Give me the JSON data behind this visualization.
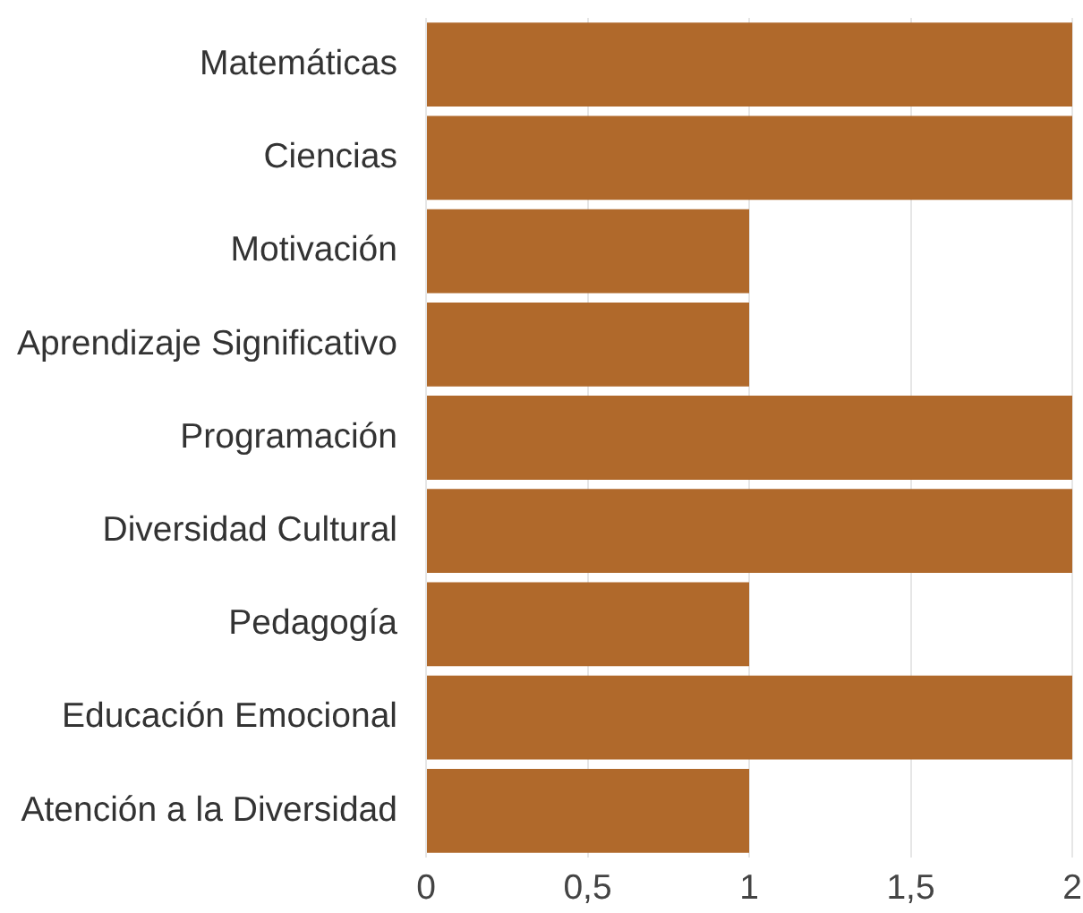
{
  "chart_data": {
    "type": "bar",
    "orientation": "horizontal",
    "categories": [
      "Matemáticas",
      "Ciencias",
      "Motivación",
      "Aprendizaje Significativo",
      "Programación",
      "Diversidad Cultural",
      "Pedagogía",
      "Educación Emocional",
      "Atención a la Diversidad"
    ],
    "values": [
      2,
      2,
      1,
      1,
      2,
      2,
      1,
      2,
      1
    ],
    "color": "#b0692b",
    "xlim": [
      0,
      2
    ],
    "xticks": [
      0,
      {
        "value": 0.5,
        "label": "0,5"
      },
      1,
      {
        "value": 1.5,
        "label": "1,5"
      },
      2
    ],
    "grid": "x"
  }
}
